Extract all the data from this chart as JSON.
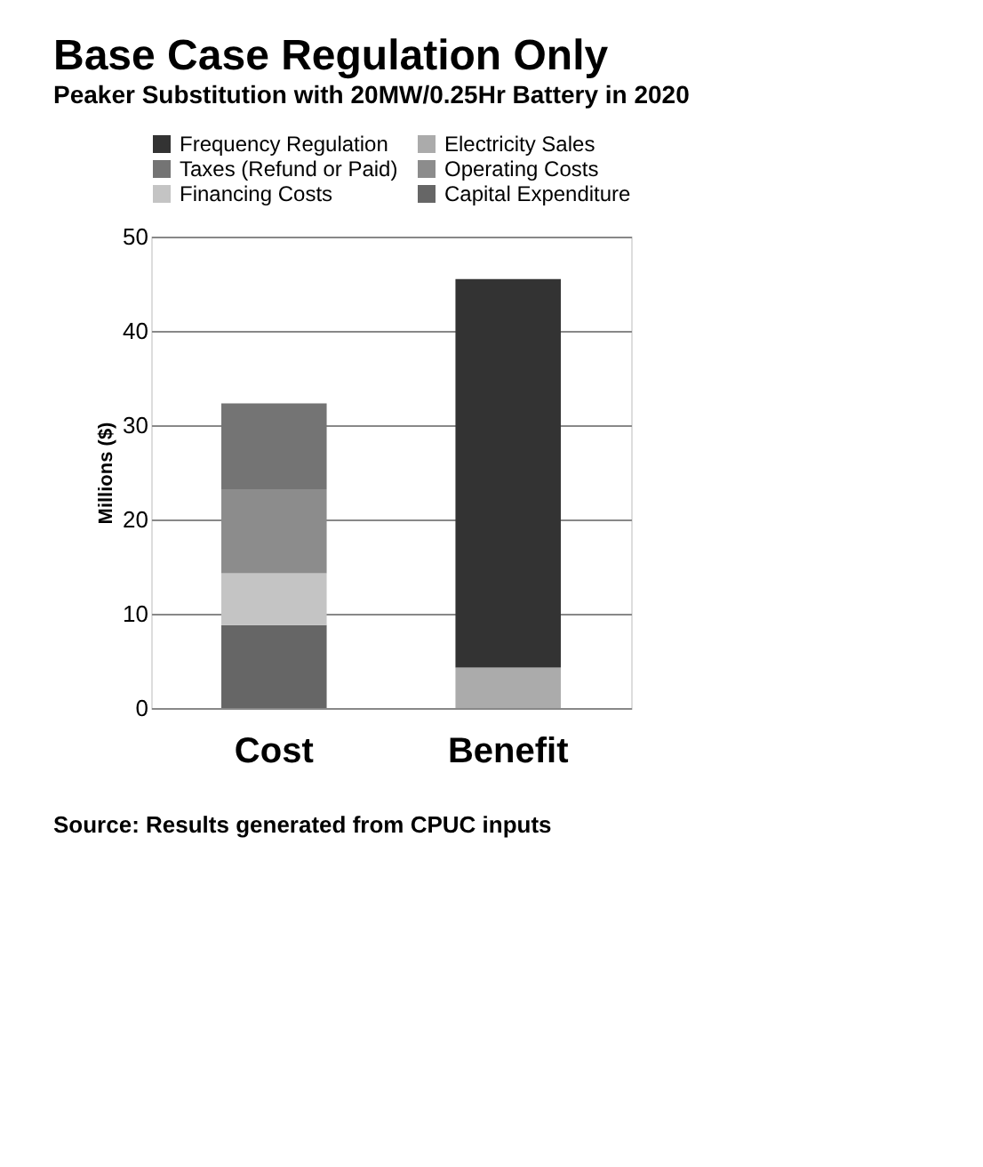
{
  "chart_data": {
    "type": "bar",
    "title": "Base Case Regulation Only",
    "subtitle": "Peaker Substitution with  20MW/0.25Hr Battery in 2020",
    "ylabel": "Millions ($)",
    "categories": [
      "Cost",
      "Benefit"
    ],
    "stacked": true,
    "series": [
      {
        "name": "Capital Expenditure",
        "color": "#666666",
        "values": [
          8.8,
          null
        ]
      },
      {
        "name": "Financing Costs",
        "color": "#c4c4c4",
        "values": [
          5.5,
          null
        ]
      },
      {
        "name": "Operating Costs",
        "color": "#8c8c8c",
        "values": [
          8.9,
          null
        ]
      },
      {
        "name": "Taxes (Refund or Paid)",
        "color": "#747474",
        "values": [
          9.1,
          null
        ]
      },
      {
        "name": "Electricity Sales",
        "color": "#ababab",
        "values": [
          null,
          4.3
        ]
      },
      {
        "name": "Frequency Regulation",
        "color": "#333333",
        "values": [
          null,
          41.2
        ]
      }
    ],
    "ylim": [
      0,
      50
    ],
    "yticks": [
      0,
      10,
      20,
      30,
      40,
      50
    ],
    "grid": "y",
    "legend": "top",
    "annotations": [
      "Source: Results generated from CPUC inputs"
    ]
  }
}
